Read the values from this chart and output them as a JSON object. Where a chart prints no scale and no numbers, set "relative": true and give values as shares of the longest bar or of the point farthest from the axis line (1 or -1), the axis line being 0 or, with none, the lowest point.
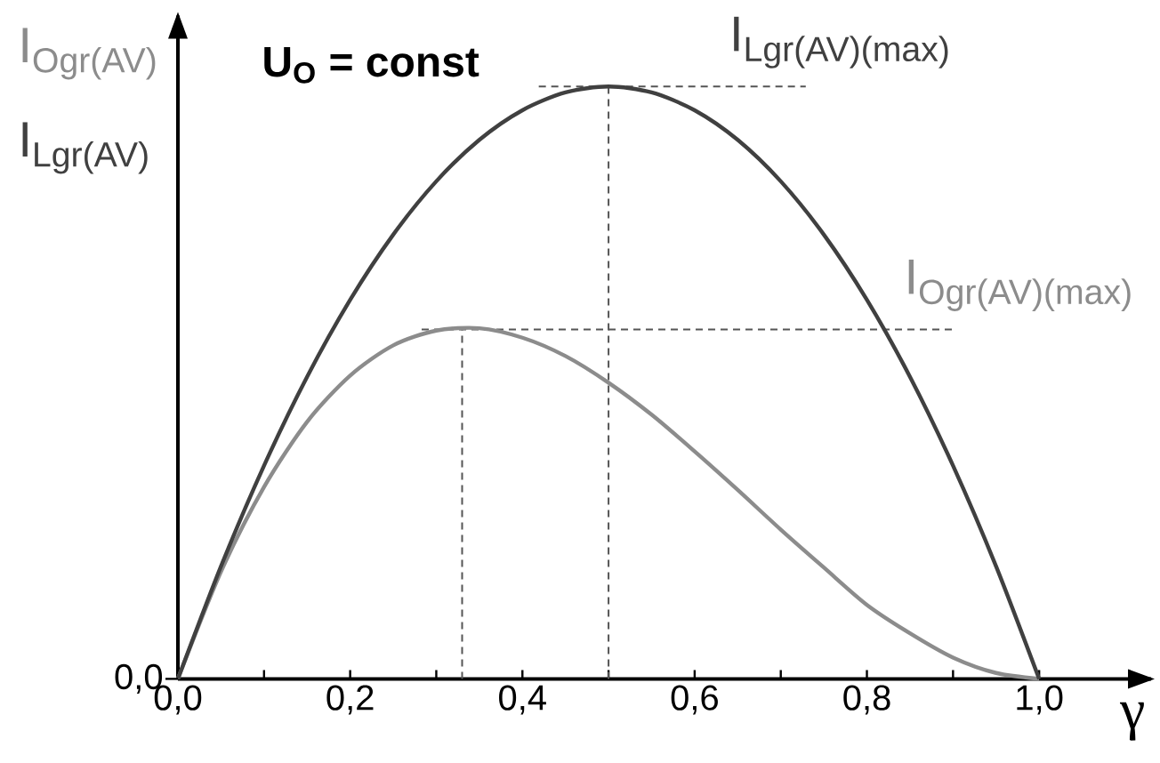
{
  "chart_data": {
    "type": "line",
    "title": "U$_{O}$ = const",
    "xlabel": "γ",
    "relative": true,
    "x": [
      0,
      0.05,
      0.1,
      0.15,
      0.2,
      0.25,
      0.3,
      0.35,
      0.4,
      0.45,
      0.5,
      0.55,
      0.6,
      0.65,
      0.7,
      0.75,
      0.8,
      0.85,
      0.9,
      0.95,
      1
    ],
    "series": [
      {
        "name": "I$_{Ogr(AV)}$",
        "color": "#8c8c8c",
        "values": [
          0,
          0.181,
          0.324,
          0.434,
          0.512,
          0.563,
          0.588,
          0.592,
          0.576,
          0.545,
          0.5,
          0.446,
          0.384,
          0.319,
          0.252,
          0.188,
          0.125,
          0.077,
          0.036,
          0.01,
          0
        ]
      },
      {
        "name": "I$_{Lgr(AV)}$",
        "color": "#404040",
        "values": [
          0,
          0.19,
          0.36,
          0.51,
          0.64,
          0.75,
          0.84,
          0.91,
          0.96,
          0.99,
          1,
          0.99,
          0.96,
          0.91,
          0.84,
          0.75,
          0.64,
          0.51,
          0.36,
          0.19,
          0
        ]
      }
    ],
    "xlim": [
      0,
      1.13
    ],
    "xticks": [
      {
        "value": 0,
        "label": "0,0"
      },
      {
        "value": 0.1,
        "label": null
      },
      {
        "value": 0.2,
        "label": "0,2"
      },
      {
        "value": 0.3,
        "label": null
      },
      {
        "value": 0.4,
        "label": "0,4"
      },
      {
        "value": 0.5,
        "label": null
      },
      {
        "value": 0.6,
        "label": "0,6"
      },
      {
        "value": 0.7,
        "label": null
      },
      {
        "value": 0.8,
        "label": "0,8"
      },
      {
        "value": 0.9,
        "label": null
      },
      {
        "value": 1,
        "label": "1,0"
      }
    ],
    "ref_lines": [
      {
        "axis": "x",
        "value": 0.5,
        "line_style": "dashed",
        "color": "#555555"
      },
      {
        "axis": "y",
        "value": 1,
        "line_style": "dashed",
        "color": "#555555",
        "label": "I$_{Lgr(AV)(max)}$"
      },
      {
        "axis": "x",
        "value": 0.33,
        "line_style": "dashed",
        "color": "#555555"
      },
      {
        "axis": "y",
        "value": 0.59,
        "line_style": "dashed",
        "color": "#555555",
        "label": "I$_{Ogr(AV)(max)}$"
      }
    ],
    "annotations": [
      {
        "text": "0,0",
        "x": 0,
        "y": 0
      }
    ]
  }
}
